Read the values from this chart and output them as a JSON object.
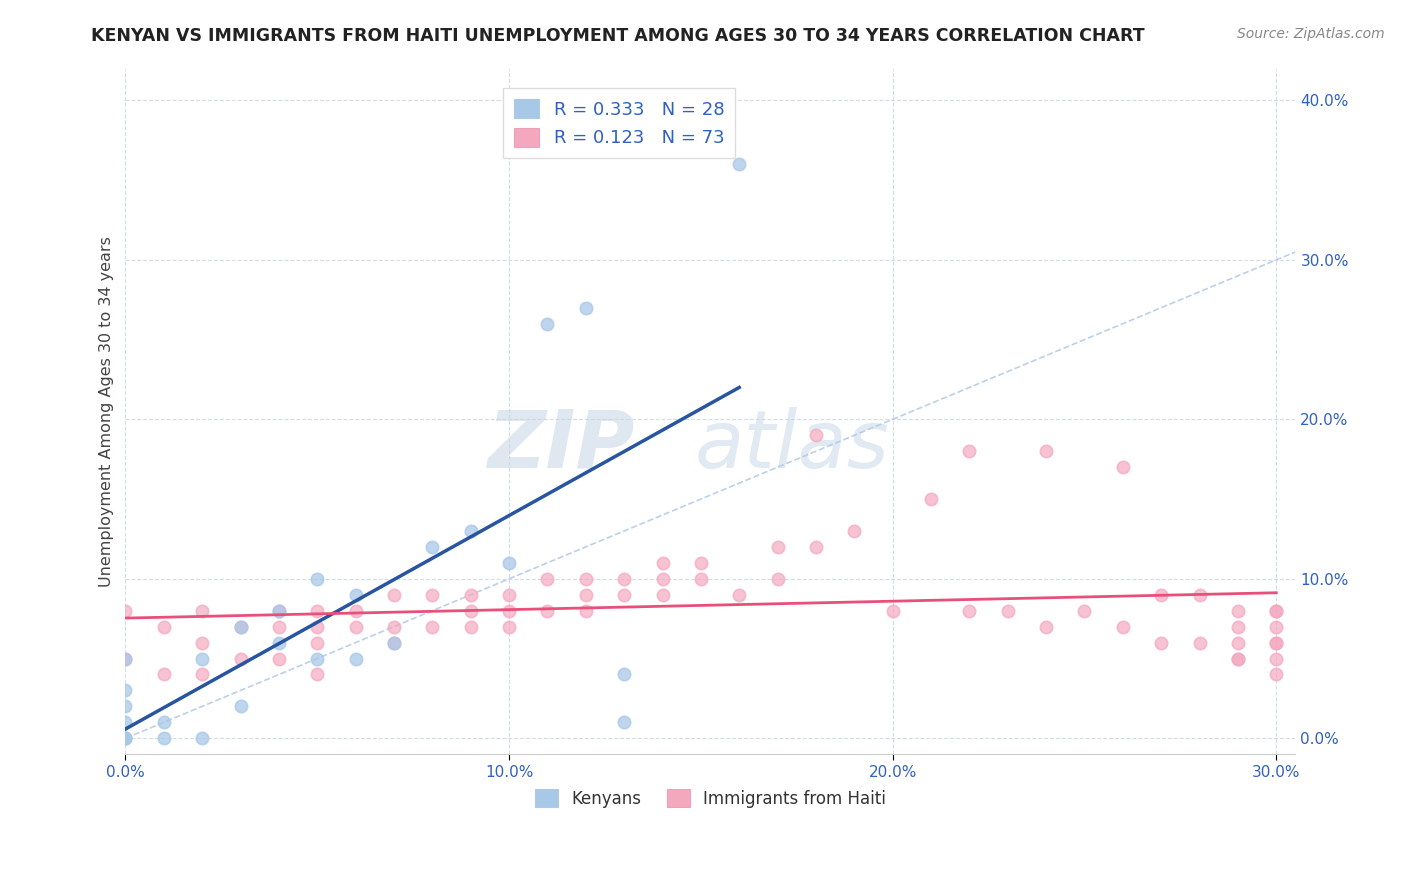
{
  "title": "KENYAN VS IMMIGRANTS FROM HAITI UNEMPLOYMENT AMONG AGES 30 TO 34 YEARS CORRELATION CHART",
  "source": "Source: ZipAtlas.com",
  "ylabel": "Unemployment Among Ages 30 to 34 years",
  "legend_label1": "Kenyans",
  "legend_label2": "Immigrants from Haiti",
  "R1": 0.333,
  "N1": 28,
  "R2": 0.123,
  "N2": 73,
  "color1": "#a8c8e8",
  "color2": "#f4a8c0",
  "trend_color1": "#2855a0",
  "trend_color2": "#e8507a",
  "diag_color": "#b0c8e8",
  "x_lim": [
    0.0,
    0.305
  ],
  "y_lim": [
    -0.01,
    0.42
  ],
  "kenyan_x": [
    0.0,
    0.0,
    0.0,
    0.0,
    0.0,
    0.0,
    0.0,
    0.01,
    0.01,
    0.02,
    0.02,
    0.03,
    0.03,
    0.04,
    0.04,
    0.05,
    0.05,
    0.06,
    0.06,
    0.07,
    0.08,
    0.09,
    0.1,
    0.11,
    0.12,
    0.13,
    0.13,
    0.16
  ],
  "kenyan_y": [
    0.0,
    0.0,
    0.0,
    0.01,
    0.02,
    0.03,
    0.05,
    0.0,
    0.01,
    0.0,
    0.05,
    0.02,
    0.07,
    0.06,
    0.08,
    0.05,
    0.1,
    0.05,
    0.09,
    0.06,
    0.12,
    0.13,
    0.11,
    0.26,
    0.27,
    0.01,
    0.04,
    0.36
  ],
  "haiti_x": [
    0.0,
    0.0,
    0.01,
    0.01,
    0.02,
    0.02,
    0.02,
    0.03,
    0.03,
    0.04,
    0.04,
    0.04,
    0.05,
    0.05,
    0.05,
    0.05,
    0.06,
    0.06,
    0.07,
    0.07,
    0.07,
    0.08,
    0.08,
    0.09,
    0.09,
    0.09,
    0.1,
    0.1,
    0.1,
    0.11,
    0.11,
    0.12,
    0.12,
    0.12,
    0.13,
    0.13,
    0.14,
    0.14,
    0.14,
    0.15,
    0.15,
    0.16,
    0.17,
    0.17,
    0.18,
    0.18,
    0.19,
    0.2,
    0.21,
    0.22,
    0.22,
    0.23,
    0.24,
    0.24,
    0.25,
    0.26,
    0.26,
    0.27,
    0.27,
    0.28,
    0.28,
    0.29,
    0.29,
    0.29,
    0.29,
    0.29,
    0.3,
    0.3,
    0.3,
    0.3,
    0.3,
    0.3,
    0.3
  ],
  "haiti_y": [
    0.05,
    0.08,
    0.04,
    0.07,
    0.04,
    0.06,
    0.08,
    0.05,
    0.07,
    0.05,
    0.07,
    0.08,
    0.04,
    0.06,
    0.07,
    0.08,
    0.07,
    0.08,
    0.06,
    0.07,
    0.09,
    0.07,
    0.09,
    0.07,
    0.08,
    0.09,
    0.07,
    0.08,
    0.09,
    0.08,
    0.1,
    0.08,
    0.09,
    0.1,
    0.09,
    0.1,
    0.09,
    0.1,
    0.11,
    0.1,
    0.11,
    0.09,
    0.1,
    0.12,
    0.12,
    0.19,
    0.13,
    0.08,
    0.15,
    0.08,
    0.18,
    0.08,
    0.07,
    0.18,
    0.08,
    0.07,
    0.17,
    0.06,
    0.09,
    0.06,
    0.09,
    0.05,
    0.06,
    0.07,
    0.08,
    0.05,
    0.04,
    0.06,
    0.07,
    0.08,
    0.05,
    0.06,
    0.08
  ]
}
